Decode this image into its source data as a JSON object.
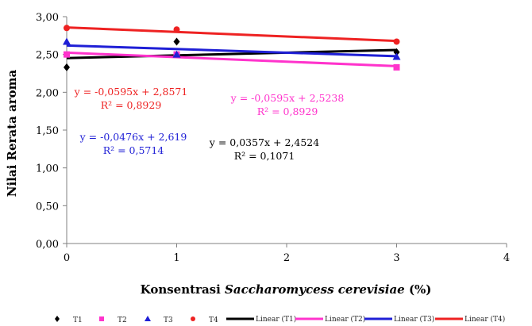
{
  "chart_data": {
    "type": "scatter",
    "xlabel_prefix": "Konsentrasi ",
    "xlabel_italic": "Saccharomycess cerevisiae",
    "xlabel_suffix": " (%)",
    "ylabel": "Nilai Rerata aroma",
    "xlim": [
      0,
      4
    ],
    "ylim": [
      0,
      3
    ],
    "x_ticks": [
      "0",
      "1",
      "2",
      "3",
      "4"
    ],
    "y_ticks": [
      "0,00",
      "0,50",
      "1,00",
      "1,50",
      "2,00",
      "2,50",
      "3,00"
    ],
    "series": [
      {
        "name": "T1",
        "marker": "diamond",
        "color": "#000000",
        "x": [
          0,
          1,
          3
        ],
        "y": [
          2.33,
          2.67,
          2.53
        ]
      },
      {
        "name": "T2",
        "marker": "square",
        "color": "#ff33cc",
        "x": [
          0,
          1,
          3
        ],
        "y": [
          2.5,
          2.5,
          2.33
        ]
      },
      {
        "name": "T3",
        "marker": "triangle",
        "color": "#1f1fd6",
        "x": [
          0,
          1,
          3
        ],
        "y": [
          2.67,
          2.5,
          2.47
        ]
      },
      {
        "name": "T4",
        "marker": "circle",
        "color": "#ee2222",
        "x": [
          0,
          1,
          3
        ],
        "y": [
          2.85,
          2.83,
          2.67
        ]
      }
    ],
    "trendlines": [
      {
        "name": "Linear (T1)",
        "color": "#000000",
        "slope": 0.0357,
        "intercept": 2.4524
      },
      {
        "name": "Linear (T2)",
        "color": "#ff33cc",
        "slope": -0.0595,
        "intercept": 2.5238
      },
      {
        "name": "Linear (T3)",
        "color": "#1f1fd6",
        "slope": -0.0476,
        "intercept": 2.619
      },
      {
        "name": "Linear (T4)",
        "color": "#ee2222",
        "slope": -0.0595,
        "intercept": 2.8571
      }
    ],
    "equations": [
      {
        "eq": "y = -0,0595x + 2,8571",
        "r2": "R² = 0,8929",
        "color": "#ee2222"
      },
      {
        "eq": "y = -0,0595x + 2,5238",
        "r2": "R² = 0,8929",
        "color": "#ff33cc"
      },
      {
        "eq": "y = -0,0476x + 2,619",
        "r2": "R² = 0,5714",
        "color": "#1f1fd6"
      },
      {
        "eq": "y = 0,0357x + 2,4524",
        "r2": "R² = 0,1071",
        "color": "#000000"
      }
    ],
    "legend_position": "bottom",
    "grid": false
  }
}
